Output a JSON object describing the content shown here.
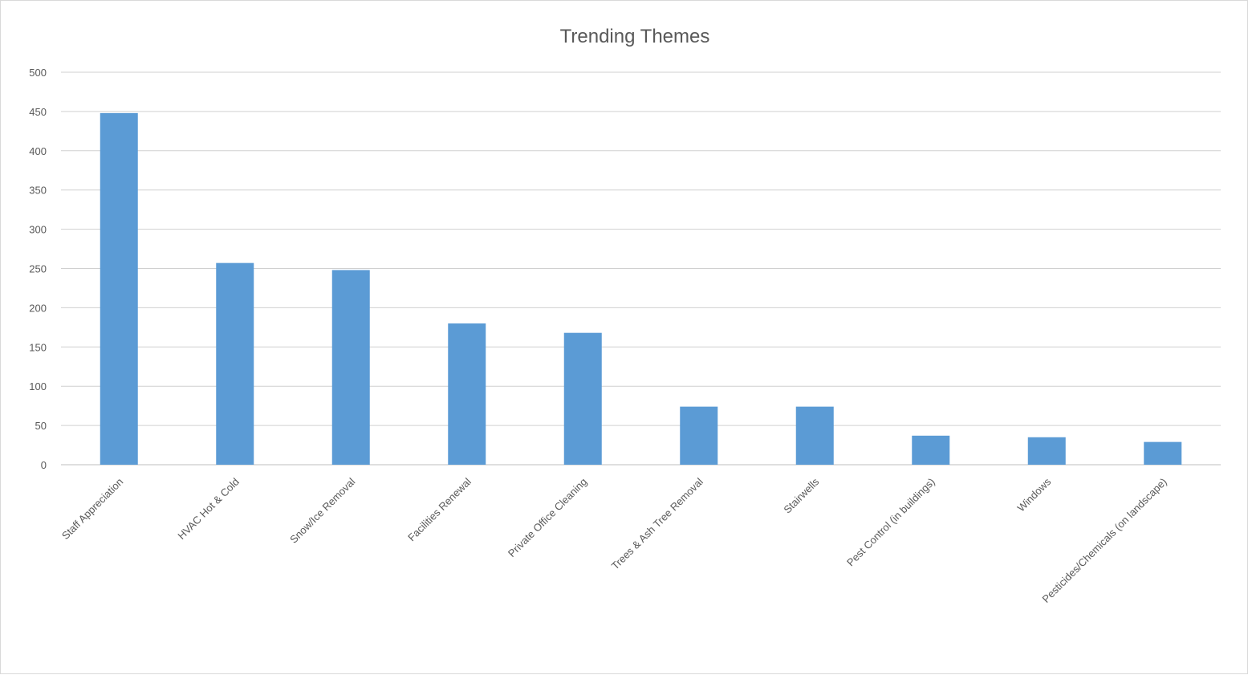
{
  "chart_data": {
    "type": "bar",
    "title": "Trending Themes",
    "xlabel": "",
    "ylabel": "",
    "ylim": [
      0,
      500
    ],
    "yticks": [
      0,
      50,
      100,
      150,
      200,
      250,
      300,
      350,
      400,
      450,
      500
    ],
    "grid": true,
    "legend": "none",
    "bar_color": "#5b9bd5",
    "categories": [
      "Staff Appreciation",
      "HVAC Hot & Cold",
      "Snow/Ice Removal",
      "Facilities Renewal",
      "Private Office Cleaning",
      "Trees & Ash Tree Removal",
      "Stairwells",
      "Pest Control (in buildings)",
      "Windows",
      "Pesticides/Chemicals (on landscape)"
    ],
    "values": [
      448,
      257,
      248,
      180,
      168,
      74,
      74,
      37,
      35,
      29
    ]
  }
}
